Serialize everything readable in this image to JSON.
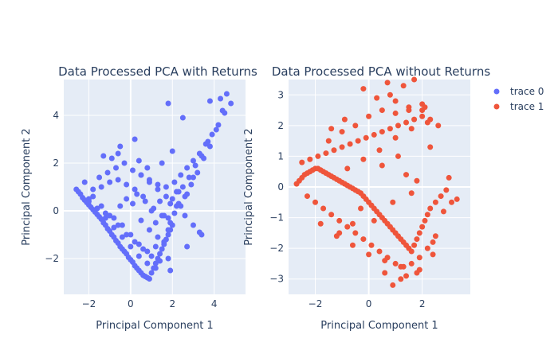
{
  "chart_data": [
    {
      "type": "scatter",
      "title": "Data Processed PCA with Returns",
      "xlabel": "Principal Component 1",
      "ylabel": "Principal Component 2",
      "xlim": [
        -3.2,
        5.5
      ],
      "ylim": [
        -3.5,
        5.5
      ],
      "xticks": [
        -2,
        0,
        2,
        4
      ],
      "yticks": [
        -2,
        0,
        2,
        4
      ],
      "grid": true,
      "series": [
        {
          "name": "trace 0",
          "color": "#636efa",
          "x": [
            -2.6,
            -2.5,
            -2.4,
            -2.3,
            -2.2,
            -2.1,
            -2.0,
            -1.9,
            -1.8,
            -1.7,
            -1.6,
            -1.5,
            -1.4,
            -1.3,
            -1.2,
            -1.1,
            -1.0,
            -0.9,
            -0.8,
            -0.7,
            -0.6,
            -0.5,
            -0.4,
            -0.3,
            -0.2,
            -0.1,
            0.0,
            0.1,
            0.2,
            0.3,
            0.4,
            0.5,
            0.6,
            0.7,
            0.8,
            0.9,
            1.0,
            1.1,
            1.2,
            1.3,
            1.4,
            1.5,
            1.6,
            1.7,
            1.8,
            1.9,
            2.0,
            1.2,
            0.8,
            0.4,
            0.0,
            -0.4,
            -0.8,
            -1.2,
            -1.6,
            -2.0,
            -0.5,
            -0.2,
            0.1,
            0.5,
            0.9,
            1.3,
            1.6,
            1.9,
            1.0,
            0.6,
            0.2,
            -0.2,
            -0.6,
            -1.0,
            -1.4,
            -1.8,
            -2.2,
            -1.5,
            -1.1,
            -0.7,
            -0.3,
            0.1,
            0.5,
            0.9,
            1.3,
            1.7,
            2.1,
            2.4,
            2.7,
            3.0,
            3.3,
            3.6,
            3.9,
            4.2,
            4.5,
            4.8,
            2.2,
            2.5,
            2.8,
            3.1,
            3.4,
            3.7,
            2.0,
            2.3,
            2.6,
            2.9,
            3.2,
            3.5,
            3.8,
            4.1,
            4.4,
            1.8,
            2.1,
            2.4,
            2.7,
            3.0,
            -2.0,
            -1.6,
            -1.2,
            -0.8,
            -0.4,
            0.0,
            0.4,
            0.8,
            1.2,
            -1.8,
            -1.4,
            -1.0,
            -0.6,
            -0.2,
            0.2,
            0.6,
            1.0,
            1.4,
            1.8,
            0.3,
            0.7,
            1.1,
            1.5,
            1.9,
            0.5,
            0.9,
            1.3,
            1.7,
            2.2,
            2.6,
            3.0,
            3.4,
            -0.9,
            -0.6,
            0.4,
            1.8,
            2.5,
            3.8,
            4.3,
            4.6,
            -1.3,
            0.8,
            1.5,
            2.0,
            1.2,
            1.6,
            2.3,
            -0.5,
            0.2,
            1.9,
            2.7,
            3.3,
            1.4,
            1.8
          ],
          "y": [
            0.9,
            0.8,
            0.7,
            0.55,
            0.45,
            0.35,
            0.25,
            0.15,
            0.05,
            -0.05,
            -0.15,
            -0.25,
            -0.35,
            -0.5,
            -0.6,
            -0.75,
            -0.85,
            -1.0,
            -1.1,
            -1.25,
            -1.35,
            -1.5,
            -1.6,
            -1.7,
            -1.8,
            -1.95,
            -2.05,
            -2.15,
            -2.3,
            -2.4,
            -2.5,
            -2.6,
            -2.7,
            -2.75,
            -2.8,
            -2.85,
            -2.6,
            -2.4,
            -2.2,
            -2.0,
            -1.8,
            -1.6,
            -1.4,
            -1.2,
            -1.0,
            -0.8,
            -0.6,
            -1.5,
            -1.7,
            -1.4,
            -1.0,
            -0.6,
            -0.3,
            -0.1,
            0.1,
            0.4,
            0.2,
            0.5,
            0.3,
            -0.4,
            -0.8,
            -1.1,
            -0.2,
            0.3,
            0.0,
            0.6,
            0.9,
            1.1,
            1.3,
            1.2,
            1.0,
            0.9,
            1.2,
            1.4,
            1.6,
            1.8,
            2.0,
            1.7,
            1.5,
            1.3,
            1.1,
            1.0,
            1.2,
            1.5,
            1.8,
            2.1,
            2.4,
            2.8,
            3.2,
            3.6,
            4.1,
            4.5,
            0.8,
            1.0,
            1.4,
            1.9,
            2.3,
            2.9,
            0.5,
            0.3,
            0.6,
            1.1,
            1.6,
            2.2,
            2.7,
            3.4,
            4.2,
            -0.3,
            -0.1,
            0.2,
            0.7,
            1.4,
            0.5,
            0.1,
            -0.3,
            -0.7,
            -1.1,
            -1.5,
            -1.9,
            -2.2,
            -2.4,
            0.6,
            0.2,
            -0.2,
            -0.6,
            -1.0,
            -1.3,
            -1.6,
            -1.9,
            -2.1,
            -2.0,
            0.7,
            0.4,
            0.1,
            -0.2,
            -0.5,
            1.5,
            1.2,
            0.9,
            0.6,
            0.2,
            -0.2,
            -0.6,
            -1.0,
            2.2,
            2.4,
            2.1,
            4.5,
            3.9,
            4.6,
            4.7,
            4.9,
            2.3,
            1.8,
            2.0,
            2.5,
            -0.5,
            -1.3,
            0.8,
            2.7,
            3.0,
            -2.5,
            -1.5,
            -0.9,
            0.4,
            -0.8
          ]
        }
      ]
    },
    {
      "type": "scatter",
      "title": "Data Processed PCA without Returns",
      "xlabel": "Principal Component 1",
      "ylabel": "Principal Component 2",
      "xlim": [
        -3.0,
        3.8
      ],
      "ylim": [
        -3.5,
        3.5
      ],
      "xticks": [
        -2,
        0,
        2
      ],
      "yticks": [
        -3,
        -2,
        -1,
        0,
        1,
        2,
        3
      ],
      "grid": true,
      "series": [
        {
          "name": "trace 1",
          "color": "#ef553b",
          "x": [
            -2.7,
            -2.6,
            -2.5,
            -2.4,
            -2.3,
            -2.2,
            -2.1,
            -2.0,
            -1.9,
            -1.8,
            -1.7,
            -1.6,
            -1.5,
            -1.4,
            -1.3,
            -1.2,
            -1.1,
            -1.0,
            -0.9,
            -0.8,
            -0.7,
            -0.6,
            -0.5,
            -0.4,
            -0.3,
            -0.2,
            -0.1,
            0.0,
            0.1,
            0.2,
            0.3,
            0.4,
            0.5,
            0.6,
            0.7,
            0.8,
            0.9,
            1.0,
            1.1,
            1.2,
            1.3,
            1.4,
            1.5,
            1.6,
            1.7,
            1.8,
            1.9,
            2.0,
            2.1,
            2.2,
            2.3,
            2.5,
            2.7,
            2.9,
            3.1,
            3.3,
            -2.5,
            -2.2,
            -1.9,
            -1.6,
            -1.3,
            -1.0,
            -0.7,
            -0.4,
            -0.1,
            0.2,
            0.5,
            0.8,
            1.1,
            1.4,
            1.7,
            2.0,
            2.3,
            2.6,
            -2.3,
            -2.0,
            -1.7,
            -1.4,
            -1.1,
            -0.8,
            -0.5,
            -0.2,
            0.1,
            0.4,
            0.7,
            1.0,
            1.3,
            1.6,
            1.9,
            2.2,
            2.5,
            -1.5,
            -1.0,
            -0.5,
            0.0,
            0.5,
            1.0,
            1.5,
            2.0,
            -1.2,
            -0.6,
            0.0,
            0.6,
            1.2,
            1.8,
            2.4,
            -0.8,
            -0.2,
            0.4,
            1.0,
            1.6,
            2.2,
            -0.2,
            0.8,
            1.3,
            2.0,
            0.3,
            1.0,
            1.5,
            2.1,
            0.6,
            1.2,
            1.9,
            0.9,
            1.4,
            2.4,
            -1.4,
            -0.9,
            0.7,
            1.7,
            2.8,
            3.0,
            -1.8,
            -1.1,
            -0.3,
            0.5,
            1.1,
            1.6,
            2.3,
            0.2,
            0.9,
            1.4,
            -0.6,
            1.8
          ],
          "y": [
            0.1,
            0.2,
            0.3,
            0.4,
            0.45,
            0.5,
            0.55,
            0.6,
            0.6,
            0.55,
            0.5,
            0.45,
            0.4,
            0.35,
            0.3,
            0.25,
            0.2,
            0.15,
            0.1,
            0.05,
            0.0,
            -0.05,
            -0.1,
            -0.15,
            -0.2,
            -0.3,
            -0.4,
            -0.5,
            -0.6,
            -0.7,
            -0.8,
            -0.9,
            -1.0,
            -1.1,
            -1.2,
            -1.3,
            -1.4,
            -1.5,
            -1.6,
            -1.7,
            -1.8,
            -1.9,
            -2.0,
            -2.1,
            -1.9,
            -1.7,
            -1.5,
            -1.3,
            -1.1,
            -0.9,
            -0.7,
            -0.5,
            -0.3,
            -0.1,
            -0.5,
            -0.4,
            0.8,
            0.9,
            1.0,
            1.1,
            1.2,
            1.3,
            1.4,
            1.5,
            1.6,
            1.7,
            1.8,
            1.9,
            2.0,
            2.1,
            2.2,
            2.3,
            2.2,
            2.0,
            -0.3,
            -0.5,
            -0.7,
            -0.9,
            -1.1,
            -1.3,
            -1.5,
            -1.7,
            -1.9,
            -2.1,
            -2.3,
            -2.5,
            -2.6,
            -2.5,
            -2.3,
            -2.0,
            -1.6,
            1.5,
            1.8,
            2.0,
            2.3,
            2.5,
            2.4,
            2.6,
            2.5,
            -1.6,
            -1.9,
            -2.2,
            -2.4,
            -2.6,
            -2.8,
            -2.2,
            0.6,
            0.9,
            1.2,
            1.6,
            1.9,
            2.1,
            3.2,
            3.0,
            3.3,
            2.7,
            2.9,
            2.8,
            2.5,
            2.6,
            -2.8,
            -3.0,
            -2.7,
            -3.2,
            -2.9,
            -1.8,
            1.9,
            2.2,
            3.4,
            3.5,
            -0.8,
            0.3,
            -1.2,
            -1.5,
            -0.7,
            0.7,
            1.0,
            -0.2,
            1.3,
            -1.1,
            -0.5,
            0.4,
            -1.2,
            0.2
          ]
        }
      ]
    }
  ],
  "legend": {
    "placement": "top-right",
    "items": [
      {
        "name": "trace 0",
        "color": "#636efa"
      },
      {
        "name": "trace 1",
        "color": "#ef553b"
      }
    ]
  },
  "colors": {
    "plot_bg": "#e5ecf6",
    "grid": "#ffffff",
    "text": "#2a3f5f"
  }
}
